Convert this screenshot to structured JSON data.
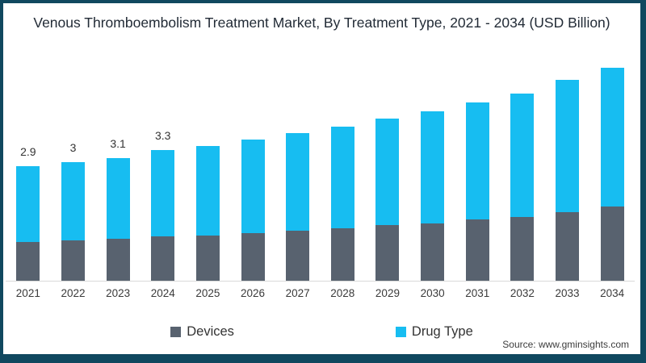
{
  "frame": {
    "border_color": "#10485f",
    "background": "#ffffff"
  },
  "title": "Venous Thromboembolism Treatment Market, By Treatment Type, 2021 - 2034 (USD Billion)",
  "source": "Source: www.gminsights.com",
  "legend": {
    "items": [
      {
        "label": "Devices",
        "color": "#58626f"
      },
      {
        "label": "Drug Type",
        "color": "#17bdf1"
      }
    ]
  },
  "chart_data": {
    "type": "bar",
    "stacked": true,
    "title": "Venous Thromboembolism Treatment Market, By Treatment Type, 2021 - 2034 (USD Billion)",
    "unit": "USD Billion",
    "categories": [
      "2021",
      "2022",
      "2023",
      "2024",
      "2025",
      "2026",
      "2027",
      "2028",
      "2029",
      "2030",
      "2031",
      "2032",
      "2033",
      "2034"
    ],
    "series": [
      {
        "name": "Devices",
        "color": "#58626f",
        "values": [
          0.98,
          1.02,
          1.06,
          1.12,
          1.14,
          1.2,
          1.27,
          1.33,
          1.41,
          1.45,
          1.55,
          1.61,
          1.73,
          1.88
        ]
      },
      {
        "name": "Drug Type",
        "color": "#17bdf1",
        "values": [
          1.92,
          1.98,
          2.04,
          2.18,
          2.27,
          2.37,
          2.46,
          2.57,
          2.69,
          2.84,
          2.96,
          3.12,
          3.35,
          3.51
        ]
      }
    ],
    "totals": [
      2.9,
      3.0,
      3.1,
      3.3,
      3.41,
      3.57,
      3.73,
      3.9,
      4.1,
      4.29,
      4.51,
      4.73,
      5.08,
      5.39
    ],
    "data_labels": [
      "2.9",
      "3",
      "3.1",
      "3.3",
      "",
      "",
      "",
      "",
      "",
      "",
      "",
      "",
      "",
      ""
    ],
    "ylim": [
      0,
      5.8
    ],
    "grid": false,
    "y_axis_visible": false,
    "axis_line_color": "#d9d9d9",
    "label_color": "#333333",
    "legend_position": "bottom"
  }
}
